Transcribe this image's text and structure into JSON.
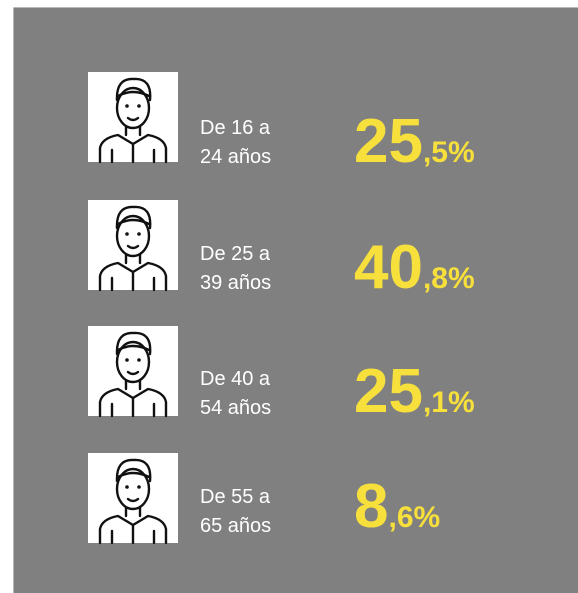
{
  "rows": [
    {
      "label": [
        "De 16 a",
        "24 años"
      ],
      "value_whole": "25",
      "value_rest": ",5%"
    },
    {
      "label": [
        "De 25 a",
        "39 años"
      ],
      "value_whole": "40",
      "value_rest": ",8%"
    },
    {
      "label": [
        "De 40 a",
        "54 años"
      ],
      "value_whole": "25",
      "value_rest": ",1%"
    },
    {
      "label": [
        "De 55 a",
        "65 años"
      ],
      "value_whole": "8",
      "value_rest": ",6%"
    }
  ]
}
